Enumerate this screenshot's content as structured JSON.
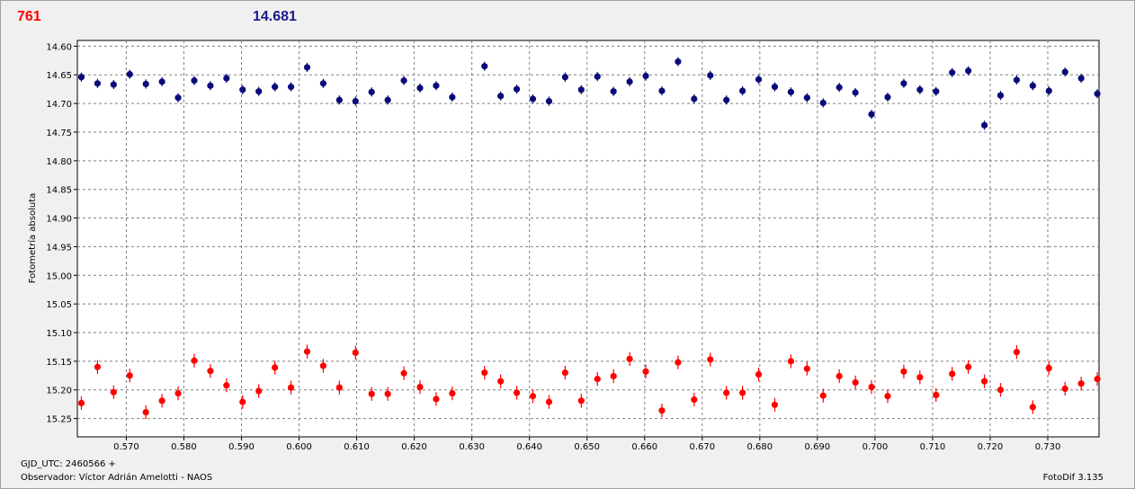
{
  "header": {
    "count": "761",
    "magnitude": "14.681"
  },
  "footer": {
    "gjd": "GJD_UTC: 2460566 +",
    "observer": "Observador: Víctor Adrián Amelotti - NAOS",
    "software": "FotoDif 3.135"
  },
  "chart_data": {
    "type": "scatter",
    "title": "",
    "xlabel": "",
    "ylabel": "Fotometría absoluta",
    "xlim": [
      0.5615,
      0.7389
    ],
    "ylim": [
      14.59,
      15.282
    ],
    "y_inverted": true,
    "grid": true,
    "x_ticks": [
      "0.570",
      "0.580",
      "0.590",
      "0.600",
      "0.610",
      "0.620",
      "0.630",
      "0.640",
      "0.650",
      "0.660",
      "0.670",
      "0.680",
      "0.690",
      "0.700",
      "0.710",
      "0.720",
      "0.730"
    ],
    "y_ticks": [
      "14.60",
      "14.65",
      "14.70",
      "14.75",
      "14.80",
      "14.85",
      "14.90",
      "14.95",
      "15.00",
      "15.05",
      "15.10",
      "15.15",
      "15.20",
      "15.25"
    ],
    "series": [
      {
        "color": "#0a0a7a",
        "x": [
          0.5622,
          0.565,
          0.5678,
          0.5706,
          0.5734,
          0.5762,
          0.579,
          0.5818,
          0.5846,
          0.5874,
          0.5902,
          0.593,
          0.5958,
          0.5986,
          0.6014,
          0.6042,
          0.607,
          0.6098,
          0.6126,
          0.6154,
          0.6182,
          0.621,
          0.6238,
          0.6266,
          0.6322,
          0.635,
          0.6378,
          0.6406,
          0.6434,
          0.6462,
          0.649,
          0.6518,
          0.6546,
          0.6574,
          0.6602,
          0.663,
          0.6658,
          0.6686,
          0.6714,
          0.6742,
          0.677,
          0.6798,
          0.6826,
          0.6854,
          0.6882,
          0.691,
          0.6938,
          0.6966,
          0.6994,
          0.7022,
          0.705,
          0.7078,
          0.7106,
          0.7134,
          0.7162,
          0.719,
          0.7218,
          0.7246,
          0.7274,
          0.7302,
          0.733,
          0.7358,
          0.7386
        ],
        "y": [
          14.654,
          14.665,
          14.667,
          14.649,
          14.666,
          14.662,
          14.69,
          14.66,
          14.669,
          14.656,
          14.676,
          14.679,
          14.671,
          14.671,
          14.637,
          14.665,
          14.694,
          14.696,
          14.68,
          14.694,
          14.66,
          14.673,
          14.669,
          14.689,
          14.635,
          14.687,
          14.675,
          14.692,
          14.696,
          14.654,
          14.676,
          14.653,
          14.679,
          14.662,
          14.652,
          14.678,
          14.627,
          14.692,
          14.651,
          14.694,
          14.678,
          14.658,
          14.671,
          14.68,
          14.69,
          14.699,
          14.672,
          14.681,
          14.719,
          14.689,
          14.665,
          14.676,
          14.679,
          14.646,
          14.643,
          14.738,
          14.686,
          14.659,
          14.669,
          14.678,
          14.645,
          14.656,
          14.683
        ],
        "err": [
          0.008,
          0.008,
          0.008,
          0.008,
          0.008,
          0.008,
          0.008,
          0.008,
          0.008,
          0.008,
          0.008,
          0.008,
          0.008,
          0.008,
          0.008,
          0.008,
          0.008,
          0.008,
          0.008,
          0.008,
          0.008,
          0.008,
          0.008,
          0.008,
          0.008,
          0.008,
          0.008,
          0.008,
          0.008,
          0.008,
          0.008,
          0.008,
          0.008,
          0.008,
          0.008,
          0.008,
          0.008,
          0.008,
          0.008,
          0.008,
          0.008,
          0.008,
          0.008,
          0.008,
          0.008,
          0.008,
          0.008,
          0.008,
          0.008,
          0.008,
          0.008,
          0.008,
          0.008,
          0.008,
          0.008,
          0.008,
          0.008,
          0.008,
          0.008,
          0.008,
          0.008,
          0.008,
          0.008
        ]
      },
      {
        "color": "#ff0000",
        "x": [
          0.5622,
          0.565,
          0.5678,
          0.5706,
          0.5734,
          0.5762,
          0.579,
          0.5818,
          0.5846,
          0.5874,
          0.5902,
          0.593,
          0.5958,
          0.5986,
          0.6014,
          0.6042,
          0.607,
          0.6098,
          0.6126,
          0.6154,
          0.6182,
          0.621,
          0.6238,
          0.6266,
          0.6322,
          0.635,
          0.6378,
          0.6406,
          0.6434,
          0.6462,
          0.649,
          0.6518,
          0.6546,
          0.6574,
          0.6602,
          0.663,
          0.6658,
          0.6686,
          0.6714,
          0.6742,
          0.677,
          0.6798,
          0.6826,
          0.6854,
          0.6882,
          0.691,
          0.6938,
          0.6966,
          0.6994,
          0.7022,
          0.705,
          0.7078,
          0.7106,
          0.7134,
          0.7162,
          0.719,
          0.7218,
          0.7246,
          0.7274,
          0.7302,
          0.733,
          0.7358,
          0.7386
        ],
        "y": [
          15.223,
          15.16,
          15.204,
          15.175,
          15.239,
          15.219,
          15.206,
          15.149,
          15.167,
          15.192,
          15.221,
          15.202,
          15.161,
          15.196,
          15.133,
          15.158,
          15.196,
          15.135,
          15.207,
          15.207,
          15.171,
          15.195,
          15.216,
          15.206,
          15.17,
          15.185,
          15.205,
          15.211,
          15.221,
          15.17,
          15.219,
          15.181,
          15.176,
          15.146,
          15.168,
          15.236,
          15.152,
          15.217,
          15.147,
          15.205,
          15.205,
          15.173,
          15.226,
          15.15,
          15.163,
          15.21,
          15.176,
          15.187,
          15.195,
          15.211,
          15.168,
          15.178,
          15.209,
          15.172,
          15.16,
          15.185,
          15.2,
          15.134,
          15.23,
          15.162,
          15.198,
          15.189,
          15.181
        ],
        "err": [
          0.012,
          0.012,
          0.012,
          0.012,
          0.012,
          0.012,
          0.012,
          0.012,
          0.012,
          0.012,
          0.012,
          0.012,
          0.012,
          0.012,
          0.012,
          0.012,
          0.012,
          0.012,
          0.012,
          0.012,
          0.012,
          0.012,
          0.012,
          0.012,
          0.012,
          0.012,
          0.012,
          0.012,
          0.012,
          0.012,
          0.012,
          0.012,
          0.012,
          0.012,
          0.012,
          0.012,
          0.012,
          0.012,
          0.012,
          0.012,
          0.012,
          0.012,
          0.012,
          0.012,
          0.012,
          0.012,
          0.012,
          0.012,
          0.012,
          0.012,
          0.012,
          0.012,
          0.012,
          0.012,
          0.012,
          0.012,
          0.012,
          0.012,
          0.012,
          0.012,
          0.012,
          0.012,
          0.012
        ]
      }
    ]
  }
}
